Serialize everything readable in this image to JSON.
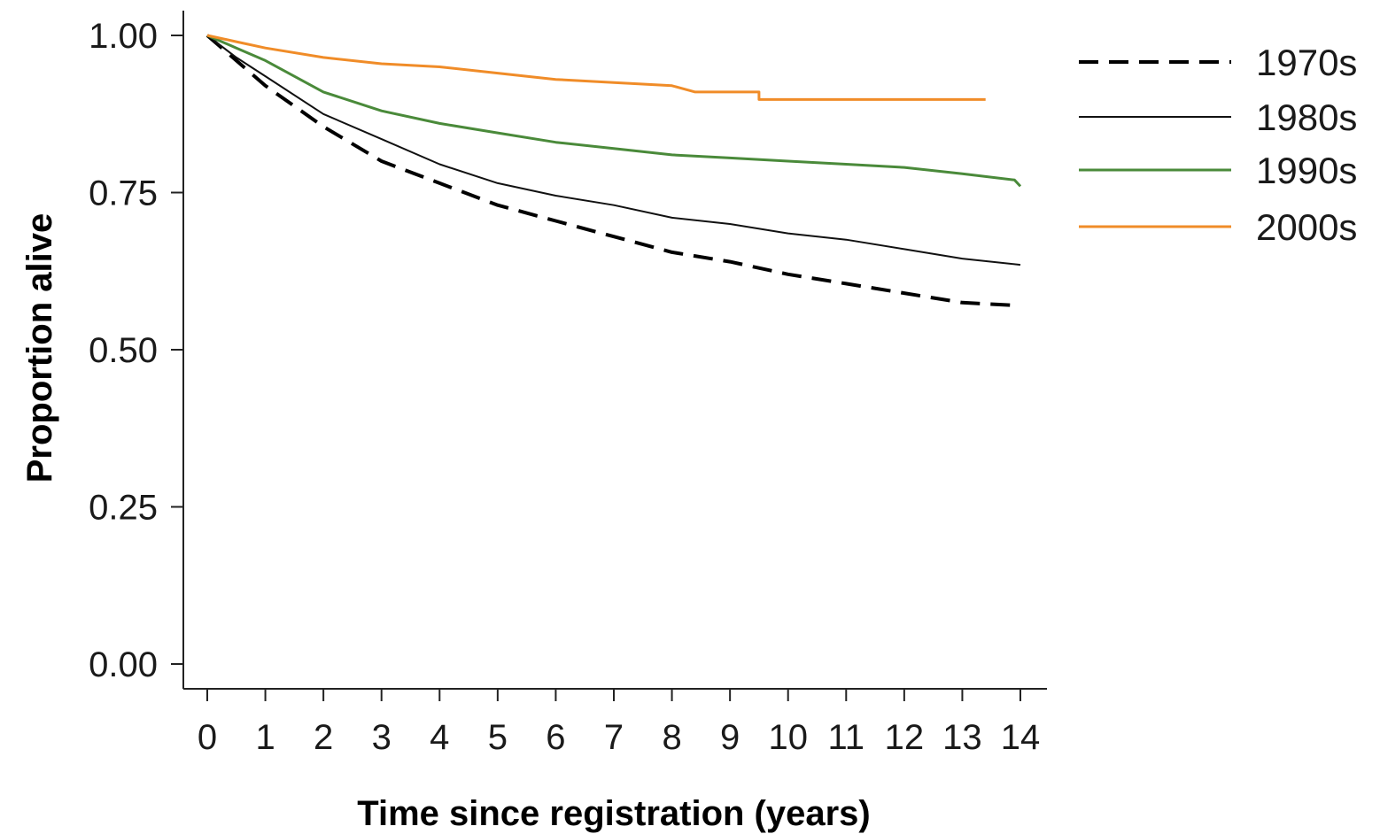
{
  "chart_data": {
    "type": "line",
    "title": "",
    "xlabel": "Time since registration (years)",
    "ylabel": "Proportion alive",
    "xlim": [
      0,
      14
    ],
    "ylim": [
      0,
      1
    ],
    "x_ticks": [
      0,
      1,
      2,
      3,
      4,
      5,
      6,
      7,
      8,
      9,
      10,
      11,
      12,
      13,
      14
    ],
    "x_tick_labels": [
      "0",
      "1",
      "2",
      "3",
      "4",
      "5",
      "6",
      "7",
      "8",
      "9",
      "10",
      "11",
      "12",
      "13",
      "14"
    ],
    "y_ticks": [
      0,
      0.25,
      0.5,
      0.75,
      1
    ],
    "y_tick_labels": [
      "0.00",
      "0.25",
      "0.50",
      "0.75",
      "1.00"
    ],
    "grid": false,
    "legend_position": "top-right outside",
    "series": [
      {
        "name": "1970s",
        "color": "#000000",
        "style": "dashed",
        "points": [
          [
            0,
            1.0
          ],
          [
            0.5,
            0.96
          ],
          [
            1,
            0.92
          ],
          [
            2,
            0.855
          ],
          [
            3,
            0.8
          ],
          [
            4,
            0.765
          ],
          [
            5,
            0.73
          ],
          [
            6,
            0.705
          ],
          [
            7,
            0.68
          ],
          [
            8,
            0.655
          ],
          [
            9,
            0.64
          ],
          [
            10,
            0.62
          ],
          [
            11,
            0.605
          ],
          [
            12,
            0.59
          ],
          [
            13,
            0.575
          ],
          [
            14,
            0.57
          ]
        ]
      },
      {
        "name": "1980s",
        "color": "#111111",
        "style": "solid",
        "points": [
          [
            0,
            1.0
          ],
          [
            0.5,
            0.965
          ],
          [
            1,
            0.935
          ],
          [
            2,
            0.875
          ],
          [
            3,
            0.835
          ],
          [
            4,
            0.795
          ],
          [
            5,
            0.765
          ],
          [
            6,
            0.745
          ],
          [
            7,
            0.73
          ],
          [
            8,
            0.71
          ],
          [
            9,
            0.7
          ],
          [
            10,
            0.685
          ],
          [
            11,
            0.675
          ],
          [
            12,
            0.66
          ],
          [
            13,
            0.645
          ],
          [
            14,
            0.635
          ]
        ]
      },
      {
        "name": "1990s",
        "color": "#4a8a3a",
        "style": "solid",
        "points": [
          [
            0,
            1.0
          ],
          [
            0.5,
            0.98
          ],
          [
            1,
            0.96
          ],
          [
            2,
            0.91
          ],
          [
            3,
            0.88
          ],
          [
            4,
            0.86
          ],
          [
            5,
            0.845
          ],
          [
            6,
            0.83
          ],
          [
            7,
            0.82
          ],
          [
            8,
            0.81
          ],
          [
            9,
            0.805
          ],
          [
            10,
            0.8
          ],
          [
            11,
            0.795
          ],
          [
            12,
            0.79
          ],
          [
            13,
            0.78
          ],
          [
            13.9,
            0.77
          ],
          [
            14,
            0.76
          ]
        ]
      },
      {
        "name": "2000s",
        "color": "#f08c28",
        "style": "solid",
        "points": [
          [
            0,
            1.0
          ],
          [
            0.5,
            0.99
          ],
          [
            1,
            0.98
          ],
          [
            2,
            0.965
          ],
          [
            3,
            0.955
          ],
          [
            4,
            0.95
          ],
          [
            5,
            0.94
          ],
          [
            6,
            0.93
          ],
          [
            7,
            0.925
          ],
          [
            8,
            0.92
          ],
          [
            8.4,
            0.91
          ],
          [
            9.5,
            0.91
          ],
          [
            9.5,
            0.898
          ],
          [
            13.4,
            0.898
          ]
        ]
      }
    ]
  }
}
